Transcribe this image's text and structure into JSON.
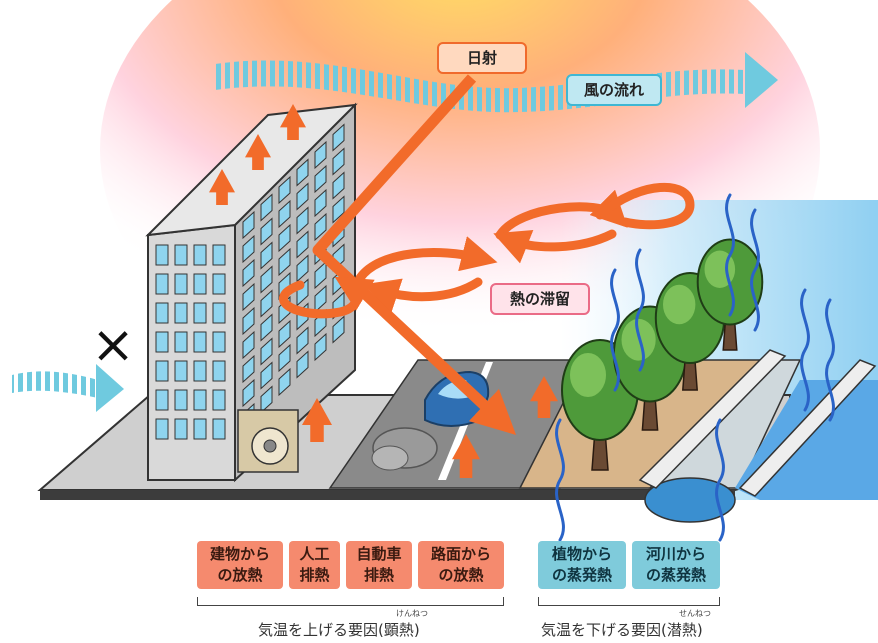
{
  "labels": {
    "sunlight": "日射",
    "wind_flow": "風の流れ",
    "heat_retention": "熱の滞留"
  },
  "heat_sources": [
    "建物から\nの放熱",
    "人工\n排熱",
    "自動車\n排熱",
    "路面から\nの放熱"
  ],
  "cooling_sources": [
    "植物から\nの蒸発熱",
    "河川から\nの蒸発熱"
  ],
  "captions": {
    "raise": "気温を上げる要因(顕熱)",
    "raise_ruby": "けんねつ",
    "lower": "気温を下げる要因(潜熱)",
    "lower_ruby": "せんねつ"
  },
  "blocked_mark": "×",
  "colors": {
    "heat_arrow": "#f26b2a",
    "wind": "#6fcadf",
    "heat_box": "#f58a6e",
    "cool_box": "#7fcbdb",
    "water": "#3a8fd0"
  }
}
